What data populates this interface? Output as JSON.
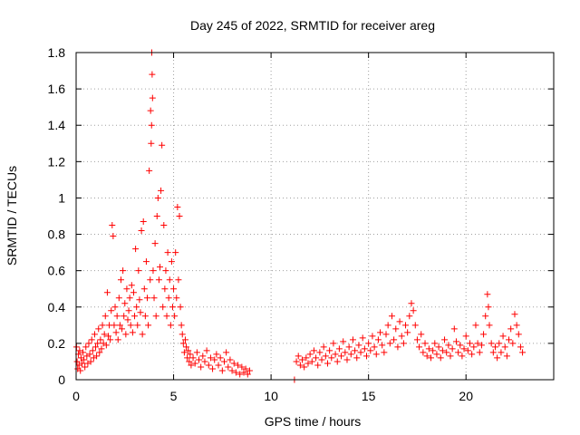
{
  "chart_data": {
    "type": "scatter",
    "title": "Day 245 of 2022, SRMTID for receiver areg",
    "xlabel": "GPS time / hours",
    "ylabel": "SRMTID / TECUs",
    "xlim": [
      0,
      24.5
    ],
    "ylim": [
      0,
      1.8
    ],
    "xticks": [
      0,
      5,
      10,
      15,
      20
    ],
    "xtick_labels": [
      "0",
      "5",
      "10",
      "15",
      "20"
    ],
    "yticks": [
      0,
      0.2,
      0.4,
      0.6,
      0.8,
      1.0,
      1.2,
      1.4,
      1.6,
      1.8
    ],
    "ytick_labels": [
      "0",
      "0.2",
      "0.4",
      "0.6",
      "0.8",
      "1",
      "1.2",
      "1.4",
      "1.6",
      "1.8"
    ],
    "grid": true,
    "marker": "+",
    "color": "#ff0000",
    "series": [
      {
        "name": "SRMTID",
        "points": [
          [
            0.02,
            0.18
          ],
          [
            0.05,
            0.1
          ],
          [
            0.08,
            0.06
          ],
          [
            0.12,
            0.14
          ],
          [
            0.15,
            0.08
          ],
          [
            0.18,
            0.16
          ],
          [
            0.22,
            0.05
          ],
          [
            0.25,
            0.12
          ],
          [
            0.3,
            0.09
          ],
          [
            0.35,
            0.15
          ],
          [
            0.4,
            0.11
          ],
          [
            0.45,
            0.07
          ],
          [
            0.5,
            0.18
          ],
          [
            0.55,
            0.13
          ],
          [
            0.6,
            0.09
          ],
          [
            0.65,
            0.2
          ],
          [
            0.7,
            0.14
          ],
          [
            0.75,
            0.1
          ],
          [
            0.8,
            0.22
          ],
          [
            0.85,
            0.16
          ],
          [
            0.9,
            0.12
          ],
          [
            0.95,
            0.25
          ],
          [
            1.0,
            0.18
          ],
          [
            1.05,
            0.13
          ],
          [
            1.1,
            0.2
          ],
          [
            1.15,
            0.28
          ],
          [
            1.2,
            0.15
          ],
          [
            1.25,
            0.22
          ],
          [
            1.3,
            0.17
          ],
          [
            1.35,
            0.3
          ],
          [
            1.4,
            0.2
          ],
          [
            1.45,
            0.25
          ],
          [
            1.5,
            0.35
          ],
          [
            1.55,
            0.19
          ],
          [
            1.6,
            0.48
          ],
          [
            1.65,
            0.24
          ],
          [
            1.7,
            0.3
          ],
          [
            1.75,
            0.22
          ],
          [
            1.8,
            0.38
          ],
          [
            1.85,
            0.85
          ],
          [
            1.9,
            0.79
          ],
          [
            1.95,
            0.3
          ],
          [
            2.0,
            0.4
          ],
          [
            2.05,
            0.26
          ],
          [
            2.1,
            0.35
          ],
          [
            2.15,
            0.22
          ],
          [
            2.2,
            0.45
          ],
          [
            2.25,
            0.3
          ],
          [
            2.3,
            0.55
          ],
          [
            2.35,
            0.28
          ],
          [
            2.4,
            0.6
          ],
          [
            2.45,
            0.35
          ],
          [
            2.5,
            0.42
          ],
          [
            2.55,
            0.25
          ],
          [
            2.6,
            0.5
          ],
          [
            2.65,
            0.33
          ],
          [
            2.7,
            0.38
          ],
          [
            2.75,
            0.45
          ],
          [
            2.8,
            0.3
          ],
          [
            2.85,
            0.52
          ],
          [
            2.9,
            0.26
          ],
          [
            2.95,
            0.48
          ],
          [
            3.0,
            0.35
          ],
          [
            3.05,
            0.72
          ],
          [
            3.1,
            0.4
          ],
          [
            3.15,
            0.3
          ],
          [
            3.2,
            0.6
          ],
          [
            3.25,
            0.44
          ],
          [
            3.3,
            0.37
          ],
          [
            3.35,
            0.82
          ],
          [
            3.4,
            0.25
          ],
          [
            3.45,
            0.87
          ],
          [
            3.5,
            0.5
          ],
          [
            3.55,
            0.35
          ],
          [
            3.6,
            0.65
          ],
          [
            3.65,
            0.45
          ],
          [
            3.7,
            0.3
          ],
          [
            3.75,
            1.15
          ],
          [
            3.8,
            0.55
          ],
          [
            3.82,
            1.48
          ],
          [
            3.85,
            1.3
          ],
          [
            3.87,
            1.4
          ],
          [
            3.88,
            1.8
          ],
          [
            3.9,
            1.68
          ],
          [
            3.92,
            1.55
          ],
          [
            3.95,
            0.6
          ],
          [
            4.0,
            0.45
          ],
          [
            4.05,
            0.75
          ],
          [
            4.1,
            0.35
          ],
          [
            4.15,
            0.9
          ],
          [
            4.2,
            1.0
          ],
          [
            4.25,
            0.55
          ],
          [
            4.3,
            0.62
          ],
          [
            4.35,
            1.04
          ],
          [
            4.4,
            1.29
          ],
          [
            4.45,
            0.4
          ],
          [
            4.5,
            0.85
          ],
          [
            4.55,
            0.5
          ],
          [
            4.6,
            0.6
          ],
          [
            4.65,
            0.35
          ],
          [
            4.7,
            0.7
          ],
          [
            4.75,
            0.45
          ],
          [
            4.8,
            0.55
          ],
          [
            4.85,
            0.3
          ],
          [
            4.9,
            0.65
          ],
          [
            4.95,
            0.4
          ],
          [
            5.0,
            0.5
          ],
          [
            5.05,
            0.35
          ],
          [
            5.1,
            0.7
          ],
          [
            5.15,
            0.45
          ],
          [
            5.2,
            0.95
          ],
          [
            5.25,
            0.55
          ],
          [
            5.3,
            0.9
          ],
          [
            5.35,
            0.4
          ],
          [
            5.4,
            0.3
          ],
          [
            5.45,
            0.25
          ],
          [
            5.5,
            0.2
          ],
          [
            5.55,
            0.15
          ],
          [
            5.6,
            0.22
          ],
          [
            5.65,
            0.18
          ],
          [
            5.7,
            0.12
          ],
          [
            5.75,
            0.16
          ],
          [
            5.8,
            0.1
          ],
          [
            5.85,
            0.14
          ],
          [
            5.9,
            0.08
          ],
          [
            6.0,
            0.12
          ],
          [
            6.1,
            0.09
          ],
          [
            6.2,
            0.15
          ],
          [
            6.3,
            0.11
          ],
          [
            6.4,
            0.07
          ],
          [
            6.5,
            0.13
          ],
          [
            6.6,
            0.1
          ],
          [
            6.7,
            0.16
          ],
          [
            6.8,
            0.08
          ],
          [
            6.9,
            0.12
          ],
          [
            7.0,
            0.06
          ],
          [
            7.1,
            0.11
          ],
          [
            7.2,
            0.14
          ],
          [
            7.3,
            0.08
          ],
          [
            7.4,
            0.12
          ],
          [
            7.5,
            0.05
          ],
          [
            7.6,
            0.1
          ],
          [
            7.7,
            0.15
          ],
          [
            7.8,
            0.07
          ],
          [
            7.9,
            0.11
          ],
          [
            8.0,
            0.05
          ],
          [
            8.1,
            0.09
          ],
          [
            8.2,
            0.04
          ],
          [
            8.3,
            0.08
          ],
          [
            8.4,
            0.03
          ],
          [
            8.5,
            0.07
          ],
          [
            8.6,
            0.04
          ],
          [
            8.7,
            0.06
          ],
          [
            8.8,
            0.03
          ],
          [
            8.9,
            0.05
          ],
          [
            11.2,
            0.0
          ],
          [
            11.3,
            0.1
          ],
          [
            11.4,
            0.13
          ],
          [
            11.5,
            0.08
          ],
          [
            11.6,
            0.11
          ],
          [
            11.7,
            0.07
          ],
          [
            11.8,
            0.12
          ],
          [
            11.9,
            0.09
          ],
          [
            12.0,
            0.14
          ],
          [
            12.1,
            0.1
          ],
          [
            12.2,
            0.16
          ],
          [
            12.3,
            0.12
          ],
          [
            12.4,
            0.08
          ],
          [
            12.5,
            0.15
          ],
          [
            12.6,
            0.11
          ],
          [
            12.7,
            0.18
          ],
          [
            12.8,
            0.13
          ],
          [
            12.9,
            0.09
          ],
          [
            13.0,
            0.16
          ],
          [
            13.1,
            0.12
          ],
          [
            13.2,
            0.2
          ],
          [
            13.3,
            0.14
          ],
          [
            13.4,
            0.1
          ],
          [
            13.5,
            0.17
          ],
          [
            13.6,
            0.13
          ],
          [
            13.7,
            0.21
          ],
          [
            13.8,
            0.15
          ],
          [
            13.9,
            0.11
          ],
          [
            14.0,
            0.18
          ],
          [
            14.1,
            0.14
          ],
          [
            14.2,
            0.22
          ],
          [
            14.3,
            0.16
          ],
          [
            14.4,
            0.12
          ],
          [
            14.5,
            0.19
          ],
          [
            14.6,
            0.15
          ],
          [
            14.7,
            0.23
          ],
          [
            14.8,
            0.17
          ],
          [
            14.9,
            0.13
          ],
          [
            15.0,
            0.2
          ],
          [
            15.1,
            0.16
          ],
          [
            15.2,
            0.24
          ],
          [
            15.3,
            0.18
          ],
          [
            15.4,
            0.14
          ],
          [
            15.5,
            0.22
          ],
          [
            15.6,
            0.26
          ],
          [
            15.7,
            0.19
          ],
          [
            15.8,
            0.15
          ],
          [
            15.9,
            0.25
          ],
          [
            16.0,
            0.3
          ],
          [
            16.1,
            0.2
          ],
          [
            16.2,
            0.35
          ],
          [
            16.3,
            0.22
          ],
          [
            16.4,
            0.28
          ],
          [
            16.5,
            0.18
          ],
          [
            16.6,
            0.32
          ],
          [
            16.7,
            0.24
          ],
          [
            16.8,
            0.2
          ],
          [
            16.9,
            0.3
          ],
          [
            17.0,
            0.26
          ],
          [
            17.1,
            0.35
          ],
          [
            17.2,
            0.42
          ],
          [
            17.3,
            0.38
          ],
          [
            17.4,
            0.3
          ],
          [
            17.5,
            0.22
          ],
          [
            17.6,
            0.18
          ],
          [
            17.7,
            0.25
          ],
          [
            17.8,
            0.15
          ],
          [
            17.9,
            0.2
          ],
          [
            18.0,
            0.13
          ],
          [
            18.1,
            0.17
          ],
          [
            18.2,
            0.12
          ],
          [
            18.3,
            0.16
          ],
          [
            18.4,
            0.2
          ],
          [
            18.5,
            0.14
          ],
          [
            18.6,
            0.18
          ],
          [
            18.7,
            0.12
          ],
          [
            18.8,
            0.16
          ],
          [
            18.9,
            0.22
          ],
          [
            19.0,
            0.15
          ],
          [
            19.1,
            0.19
          ],
          [
            19.2,
            0.13
          ],
          [
            19.3,
            0.17
          ],
          [
            19.4,
            0.28
          ],
          [
            19.5,
            0.21
          ],
          [
            19.6,
            0.15
          ],
          [
            19.7,
            0.19
          ],
          [
            19.8,
            0.13
          ],
          [
            19.9,
            0.17
          ],
          [
            20.0,
            0.24
          ],
          [
            20.1,
            0.16
          ],
          [
            20.2,
            0.2
          ],
          [
            20.3,
            0.14
          ],
          [
            20.4,
            0.18
          ],
          [
            20.5,
            0.3
          ],
          [
            20.6,
            0.2
          ],
          [
            20.7,
            0.15
          ],
          [
            20.8,
            0.19
          ],
          [
            20.9,
            0.25
          ],
          [
            21.0,
            0.35
          ],
          [
            21.1,
            0.47
          ],
          [
            21.15,
            0.4
          ],
          [
            21.2,
            0.3
          ],
          [
            21.3,
            0.2
          ],
          [
            21.4,
            0.15
          ],
          [
            21.5,
            0.18
          ],
          [
            21.6,
            0.12
          ],
          [
            21.7,
            0.2
          ],
          [
            21.8,
            0.15
          ],
          [
            21.9,
            0.24
          ],
          [
            22.0,
            0.18
          ],
          [
            22.1,
            0.13
          ],
          [
            22.2,
            0.22
          ],
          [
            22.3,
            0.28
          ],
          [
            22.4,
            0.2
          ],
          [
            22.5,
            0.36
          ],
          [
            22.6,
            0.3
          ],
          [
            22.7,
            0.25
          ],
          [
            22.8,
            0.18
          ],
          [
            22.9,
            0.15
          ]
        ]
      }
    ]
  }
}
